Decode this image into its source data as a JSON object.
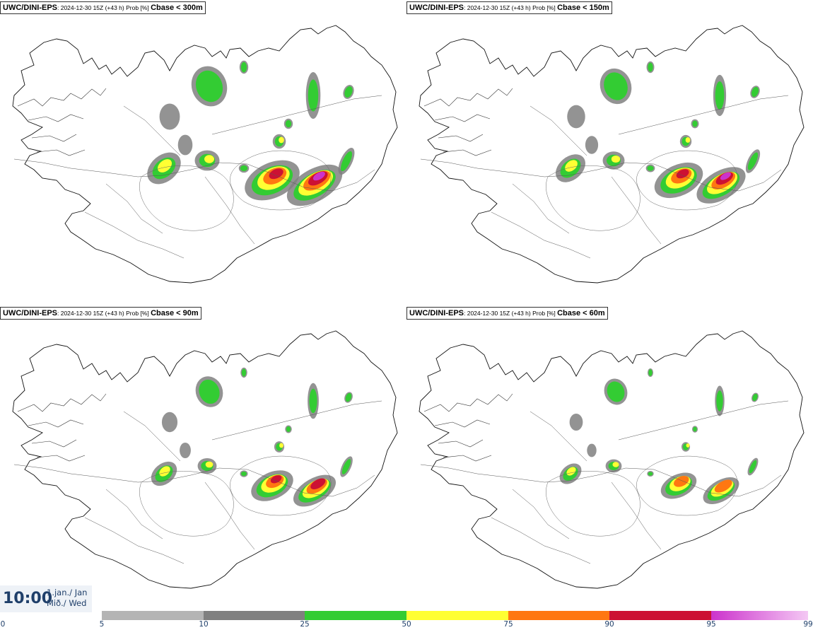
{
  "panels": [
    {
      "model": "UWC/DINI-EPS",
      "meta": ": 2024-12-30 15Z (+43 h) Prob [%] ",
      "threshold": "Cbase < 300m",
      "level": 4
    },
    {
      "model": "UWC/DINI-EPS",
      "meta": ": 2024-12-30 15Z (+43 h) Prob [%] ",
      "threshold": "Cbase < 150m",
      "level": 3
    },
    {
      "model": "UWC/DINI-EPS",
      "meta": ": 2024-12-30 15Z (+43 h) Prob [%] ",
      "threshold": "Cbase < 90m",
      "level": 2
    },
    {
      "model": "UWC/DINI-EPS",
      "meta": ": 2024-12-30 15Z (+43 h) Prob [%] ",
      "threshold": "Cbase < 60m",
      "level": 1
    }
  ],
  "time": {
    "clock": "10:00",
    "date_line1": "1.jan./ Jan",
    "date_line2": "Mið./ Wed"
  },
  "legend": {
    "ticks": [
      "0",
      "5",
      "10",
      "25",
      "50",
      "75",
      "90",
      "95",
      "99"
    ],
    "colors": [
      "#ffffff",
      "#b4b4b4",
      "#808080",
      "#33cc33",
      "#ffff33",
      "#ff7711",
      "#cc1133",
      "#cc33cc",
      "#f4c8f4"
    ]
  }
}
